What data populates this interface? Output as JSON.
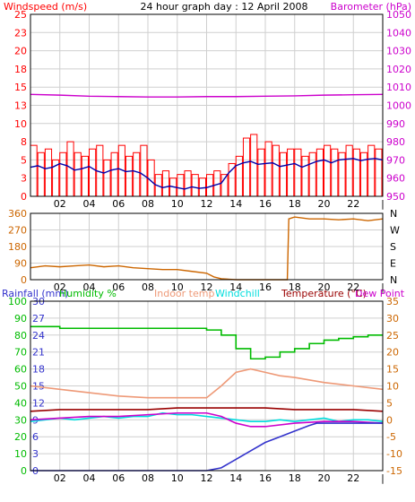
{
  "header": {
    "wind_label": "Windspeed (m/s)",
    "title": "24 hour graph day : 12 April 2008",
    "baro_label": "Barometer (hPa)"
  },
  "colors": {
    "wind": "#ff0000",
    "wind_avg": "#0000aa",
    "baro": "#cc00cc",
    "dir": "#cc6600",
    "rain": "#3333cc",
    "humidity": "#00bb00",
    "indoor": "#ee9977",
    "windchill": "#00dddd",
    "temperature": "#990000",
    "dewpoint": "#cc00cc",
    "frame": "#000000",
    "grid": "#cfcfcf"
  },
  "chart_data": [
    {
      "type": "line",
      "x_ticks": [
        "02",
        "04",
        "06",
        "08",
        "10",
        "12",
        "14",
        "16",
        "18",
        "20",
        "22",
        "|"
      ],
      "y_left_ticks": [
        "0",
        "3",
        "5",
        "8",
        "10",
        "13",
        "15",
        "18",
        "20",
        "23",
        "25"
      ],
      "y_right_ticks": [
        "950",
        "960",
        "970",
        "980",
        "990",
        "1000",
        "1010",
        "1020",
        "1030",
        "1040",
        "1050"
      ],
      "ylim_left": [
        0,
        25
      ],
      "ylim_right": [
        950,
        1050
      ],
      "x_range": [
        0,
        24
      ],
      "series": [
        {
          "name": "Windspeed (m/s)",
          "axis": "left",
          "style": "gust",
          "x": [
            0,
            0.5,
            1,
            1.5,
            2,
            2.5,
            3,
            3.5,
            4,
            4.5,
            5,
            5.5,
            6,
            6.5,
            7,
            7.5,
            8,
            8.5,
            9,
            9.5,
            10,
            10.5,
            11,
            11.5,
            12,
            12.5,
            13,
            13.5,
            14,
            14.5,
            15,
            15.5,
            16,
            16.5,
            17,
            17.5,
            18,
            18.5,
            19,
            19.5,
            20,
            20.5,
            21,
            21.5,
            22,
            22.5,
            23,
            23.5,
            24
          ],
          "values": [
            7,
            6,
            6.5,
            5,
            6,
            7.5,
            6,
            5.5,
            6.5,
            7,
            5,
            6,
            7,
            5.5,
            6,
            7,
            5,
            3,
            3.5,
            2.5,
            3,
            3.5,
            3,
            2.5,
            3,
            3.5,
            3,
            4.5,
            5.5,
            8,
            8.5,
            6.5,
            7.5,
            7,
            6,
            6.5,
            6.5,
            5.5,
            6,
            6.5,
            7,
            6.5,
            6,
            7,
            6.5,
            6,
            7,
            6.5,
            6.5
          ]
        },
        {
          "name": "Wind average",
          "axis": "left",
          "style": "avg",
          "x": [
            0,
            0.5,
            1,
            1.5,
            2,
            2.5,
            3,
            3.5,
            4,
            4.5,
            5,
            5.5,
            6,
            6.5,
            7,
            7.5,
            8,
            8.5,
            9,
            9.5,
            10,
            10.5,
            11,
            11.5,
            12,
            12.5,
            13,
            13.5,
            14,
            14.5,
            15,
            15.5,
            16,
            16.5,
            17,
            17.5,
            18,
            18.5,
            19,
            19.5,
            20,
            20.5,
            21,
            21.5,
            22,
            22.5,
            23,
            23.5,
            24
          ],
          "values": [
            4,
            4.2,
            3.8,
            4,
            4.5,
            4.2,
            3.6,
            3.8,
            4.1,
            3.5,
            3.2,
            3.6,
            3.8,
            3.4,
            3.5,
            3.2,
            2.5,
            1.6,
            1.2,
            1.4,
            1.2,
            1.0,
            1.3,
            1.1,
            1.2,
            1.5,
            1.8,
            3.2,
            4.2,
            4.6,
            4.8,
            4.4,
            4.5,
            4.6,
            4.1,
            4.3,
            4.5,
            4.0,
            4.4,
            4.8,
            5.0,
            4.6,
            5.0,
            5.1,
            5.2,
            4.9,
            5.1,
            5.2,
            5.0
          ]
        },
        {
          "name": "Barometer (hPa)",
          "axis": "right",
          "style": "baro",
          "x": [
            0,
            2,
            4,
            6,
            8,
            10,
            12,
            14,
            16,
            18,
            20,
            22,
            24
          ],
          "values": [
            1006,
            1005.6,
            1005,
            1004.8,
            1004.6,
            1004.6,
            1004.8,
            1004.8,
            1005,
            1005.2,
            1005.6,
            1005.8,
            1006
          ]
        }
      ]
    },
    {
      "type": "line",
      "x_ticks": [
        "02",
        "04",
        "06",
        "08",
        "10",
        "12",
        "14",
        "16",
        "18",
        "20",
        "22",
        "|"
      ],
      "y_left_ticks": [
        "0",
        "90",
        "180",
        "270",
        "360"
      ],
      "y_right_ticks": [
        "N",
        "E",
        "S",
        "W",
        "N"
      ],
      "ylim": [
        0,
        360
      ],
      "x_range": [
        0,
        24
      ],
      "series": [
        {
          "name": "Wind direction",
          "axis": "left",
          "x": [
            0,
            1,
            2,
            3,
            4,
            5,
            6,
            7,
            8,
            9,
            10,
            11,
            12,
            12.5,
            13,
            14,
            15,
            16,
            17,
            17.5,
            17.6,
            18,
            19,
            20,
            21,
            22,
            23,
            24
          ],
          "values": [
            65,
            75,
            70,
            75,
            80,
            70,
            75,
            65,
            60,
            55,
            55,
            45,
            35,
            15,
            5,
            0,
            0,
            0,
            0,
            0,
            330,
            340,
            330,
            330,
            325,
            330,
            320,
            330
          ]
        }
      ]
    },
    {
      "type": "line",
      "legend": [
        "Rainfall (mm)",
        "Humidity %",
        "Indoor temp",
        "Windchill",
        "Temperature (°C)",
        "Dew Point"
      ],
      "x_ticks": [
        "02",
        "04",
        "06",
        "08",
        "10",
        "12",
        "14",
        "16",
        "18",
        "20",
        "22",
        "|"
      ],
      "y_left_ticks": [
        "0",
        "10",
        "20",
        "30",
        "40",
        "50",
        "60",
        "70",
        "80",
        "90",
        "100"
      ],
      "y_left2_ticks": [
        "0",
        "3",
        "6",
        "9",
        "12",
        "15",
        "18",
        "21",
        "24",
        "27",
        "30"
      ],
      "y_right_ticks": [
        "-15",
        "-10",
        "-5",
        "0",
        "5",
        "10",
        "15",
        "20",
        "25",
        "30",
        "35"
      ],
      "ylim_left": [
        0,
        100
      ],
      "ylim_right": [
        -15,
        35
      ],
      "x_range": [
        0,
        24
      ],
      "series": [
        {
          "name": "Humidity %",
          "axis": "left",
          "x": [
            0,
            2,
            4,
            6,
            8,
            10,
            12,
            13,
            14,
            15,
            16,
            17,
            18,
            19,
            20,
            21,
            22,
            23,
            24
          ],
          "values": [
            85,
            84,
            84,
            84,
            84,
            84,
            83,
            80,
            72,
            66,
            67,
            70,
            72,
            75,
            77,
            78,
            79,
            80,
            80
          ]
        },
        {
          "name": "Indoor temp",
          "axis": "right",
          "x": [
            0,
            2,
            4,
            6,
            8,
            10,
            12,
            13,
            14,
            15,
            16,
            17,
            18,
            20,
            22,
            24
          ],
          "values": [
            10,
            9,
            8,
            7,
            6.5,
            6.5,
            6.5,
            10,
            14,
            15,
            14,
            13,
            12.5,
            11,
            10,
            9
          ]
        },
        {
          "name": "Windchill",
          "axis": "right",
          "x": [
            0,
            1,
            2,
            3,
            4,
            5,
            6,
            7,
            8,
            9,
            10,
            11,
            12,
            13,
            14,
            15,
            16,
            17,
            18,
            19,
            20,
            21,
            22,
            23,
            24
          ],
          "values": [
            -0.5,
            0,
            0.5,
            0,
            0.5,
            1,
            0.5,
            1,
            1,
            2,
            1.5,
            1.5,
            1,
            0.5,
            0,
            -0.5,
            -0.5,
            0,
            -0.5,
            0,
            0.5,
            -0.5,
            0,
            0,
            -0.5
          ]
        },
        {
          "name": "Temperature (°C)",
          "axis": "right",
          "x": [
            0,
            2,
            4,
            6,
            8,
            10,
            12,
            14,
            16,
            18,
            20,
            22,
            24
          ],
          "values": [
            2.5,
            3,
            3,
            3,
            3,
            3.5,
            3.5,
            3.5,
            3.5,
            3,
            3,
            3,
            2.5
          ]
        },
        {
          "name": "Dew Point",
          "axis": "right",
          "x": [
            0,
            2,
            4,
            6,
            8,
            10,
            12,
            13,
            14,
            15,
            16,
            18,
            20,
            22,
            24
          ],
          "values": [
            0,
            0.5,
            1,
            1,
            1.5,
            2,
            2,
            1,
            -1,
            -2,
            -2,
            -1,
            -0.5,
            -0.5,
            -1
          ]
        },
        {
          "name": "Rainfall (mm)",
          "axis": "left2",
          "x": [
            0,
            10,
            12,
            13,
            14,
            15,
            16,
            17,
            18,
            19,
            19.5,
            20,
            24
          ],
          "values": [
            0,
            0,
            0,
            0.5,
            2,
            3.5,
            5,
            6,
            7,
            8,
            8.4,
            8.4,
            8.4
          ]
        }
      ]
    }
  ]
}
